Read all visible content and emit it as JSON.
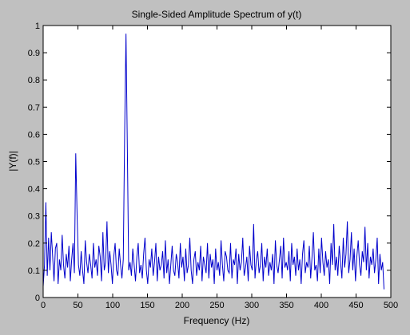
{
  "chart_data": {
    "type": "line",
    "title": "Single-Sided Amplitude Spectrum of y(t)",
    "xlabel": "Frequency (Hz)",
    "ylabel": "|Y(f)|",
    "xlim": [
      0,
      500
    ],
    "ylim": [
      0,
      1
    ],
    "xticks": [
      0,
      50,
      100,
      150,
      200,
      250,
      300,
      350,
      400,
      450,
      500
    ],
    "yticks": [
      0,
      0.1,
      0.2,
      0.3,
      0.4,
      0.5,
      0.6,
      0.7,
      0.8,
      0.9,
      1
    ],
    "xtick_labels": [
      "0",
      "50",
      "100",
      "150",
      "200",
      "250",
      "300",
      "350",
      "400",
      "450",
      "500"
    ],
    "ytick_labels": [
      "0",
      "0.1",
      "0.2",
      "0.3",
      "0.4",
      "0.5",
      "0.6",
      "0.7",
      "0.8",
      "0.9",
      "1"
    ],
    "grid": false,
    "colors": {
      "line": "#0000cc",
      "background": "#c0c0c0",
      "axes_bg": "#ffffff",
      "axis": "#000000"
    },
    "series": [
      {
        "x_step": 1.953,
        "values": [
          0.04,
          0.12,
          0.35,
          0.08,
          0.22,
          0.1,
          0.24,
          0.15,
          0.06,
          0.18,
          0.2,
          0.05,
          0.14,
          0.1,
          0.23,
          0.12,
          0.07,
          0.16,
          0.11,
          0.19,
          0.06,
          0.14,
          0.2,
          0.09,
          0.53,
          0.3,
          0.12,
          0.08,
          0.17,
          0.1,
          0.05,
          0.21,
          0.13,
          0.09,
          0.16,
          0.12,
          0.07,
          0.2,
          0.11,
          0.14,
          0.08,
          0.19,
          0.15,
          0.06,
          0.24,
          0.1,
          0.13,
          0.28,
          0.09,
          0.17,
          0.12,
          0.05,
          0.15,
          0.2,
          0.1,
          0.08,
          0.18,
          0.12,
          0.07,
          0.14,
          0.6,
          0.97,
          0.55,
          0.1,
          0.13,
          0.08,
          0.18,
          0.12,
          0.06,
          0.15,
          0.2,
          0.09,
          0.12,
          0.07,
          0.16,
          0.22,
          0.1,
          0.05,
          0.14,
          0.11,
          0.18,
          0.08,
          0.13,
          0.2,
          0.06,
          0.15,
          0.1,
          0.12,
          0.17,
          0.07,
          0.21,
          0.09,
          0.14,
          0.05,
          0.12,
          0.19,
          0.1,
          0.08,
          0.16,
          0.13,
          0.07,
          0.2,
          0.11,
          0.15,
          0.06,
          0.18,
          0.09,
          0.12,
          0.22,
          0.1,
          0.05,
          0.14,
          0.17,
          0.08,
          0.13,
          0.1,
          0.19,
          0.06,
          0.15,
          0.12,
          0.09,
          0.2,
          0.07,
          0.16,
          0.11,
          0.14,
          0.05,
          0.18,
          0.1,
          0.13,
          0.08,
          0.21,
          0.12,
          0.06,
          0.17,
          0.15,
          0.1,
          0.09,
          0.2,
          0.07,
          0.14,
          0.12,
          0.18,
          0.05,
          0.16,
          0.1,
          0.13,
          0.22,
          0.08,
          0.11,
          0.15,
          0.06,
          0.19,
          0.12,
          0.1,
          0.27,
          0.07,
          0.14,
          0.17,
          0.09,
          0.12,
          0.2,
          0.06,
          0.15,
          0.11,
          0.18,
          0.08,
          0.13,
          0.1,
          0.16,
          0.05,
          0.21,
          0.12,
          0.09,
          0.14,
          0.19,
          0.07,
          0.22,
          0.11,
          0.13,
          0.1,
          0.17,
          0.06,
          0.2,
          0.12,
          0.15,
          0.08,
          0.18,
          0.1,
          0.14,
          0.05,
          0.16,
          0.21,
          0.09,
          0.13,
          0.11,
          0.19,
          0.07,
          0.15,
          0.24,
          0.1,
          0.12,
          0.06,
          0.18,
          0.09,
          0.22,
          0.13,
          0.08,
          0.17,
          0.11,
          0.14,
          0.05,
          0.2,
          0.12,
          0.27,
          0.1,
          0.15,
          0.08,
          0.19,
          0.13,
          0.07,
          0.22,
          0.11,
          0.16,
          0.28,
          0.09,
          0.14,
          0.24,
          0.1,
          0.18,
          0.06,
          0.15,
          0.21,
          0.12,
          0.08,
          0.17,
          0.13,
          0.26,
          0.1,
          0.2,
          0.07,
          0.15,
          0.12,
          0.18,
          0.09,
          0.14,
          0.22,
          0.05,
          0.16,
          0.1,
          0.13,
          0.03
        ]
      }
    ]
  }
}
